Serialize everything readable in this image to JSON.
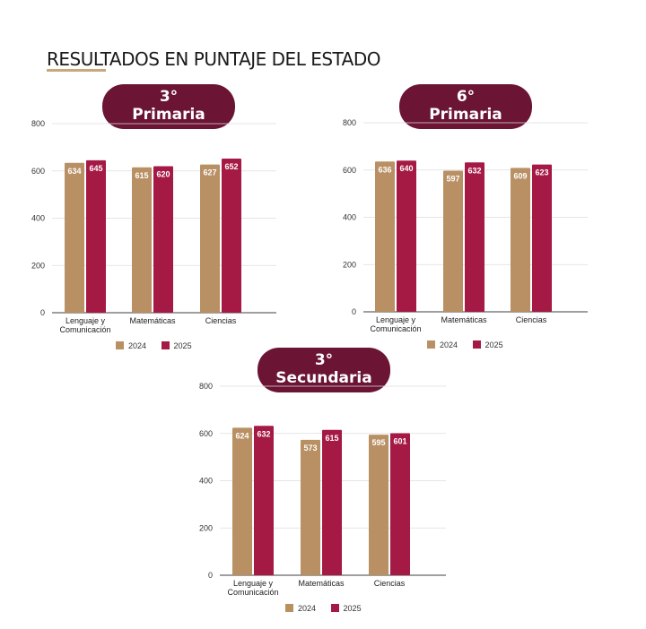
{
  "page": {
    "title": "RESULTADOS EN PUNTAJE DEL ESTADO"
  },
  "colors": {
    "2024": "#b89064",
    "2025": "#a51a45",
    "pill": "#6b1434"
  },
  "chart_data": [
    {
      "type": "bar",
      "heading_line1": "3°",
      "heading_line2": "Primaria",
      "categories": [
        "Lenguaje y Comunicación",
        "Matemáticas",
        "Ciencias"
      ],
      "series": [
        {
          "name": "2024",
          "values": [
            634,
            615,
            627
          ]
        },
        {
          "name": "2025",
          "values": [
            645,
            620,
            652
          ]
        }
      ],
      "ylim": [
        0,
        800
      ],
      "yticks": [
        0,
        200,
        400,
        600,
        800
      ],
      "grid": true,
      "legend": "bottom"
    },
    {
      "type": "bar",
      "heading_line1": "6°",
      "heading_line2": "Primaria",
      "categories": [
        "Lenguaje y Comunicación",
        "Matemáticas",
        "Ciencias"
      ],
      "series": [
        {
          "name": "2024",
          "values": [
            636,
            597,
            609
          ]
        },
        {
          "name": "2025",
          "values": [
            640,
            632,
            623
          ]
        }
      ],
      "ylim": [
        0,
        800
      ],
      "yticks": [
        0,
        200,
        400,
        600,
        800
      ],
      "grid": true,
      "legend": "bottom"
    },
    {
      "type": "bar",
      "heading_line1": "3°",
      "heading_line2": "Secundaria",
      "categories": [
        "Lenguaje y Comunicación",
        "Matemáticas",
        "Ciencias"
      ],
      "series": [
        {
          "name": "2024",
          "values": [
            624,
            573,
            595
          ]
        },
        {
          "name": "2025",
          "values": [
            632,
            615,
            601
          ]
        }
      ],
      "ylim": [
        0,
        800
      ],
      "yticks": [
        0,
        200,
        400,
        600,
        800
      ],
      "grid": true,
      "legend": "bottom"
    }
  ]
}
